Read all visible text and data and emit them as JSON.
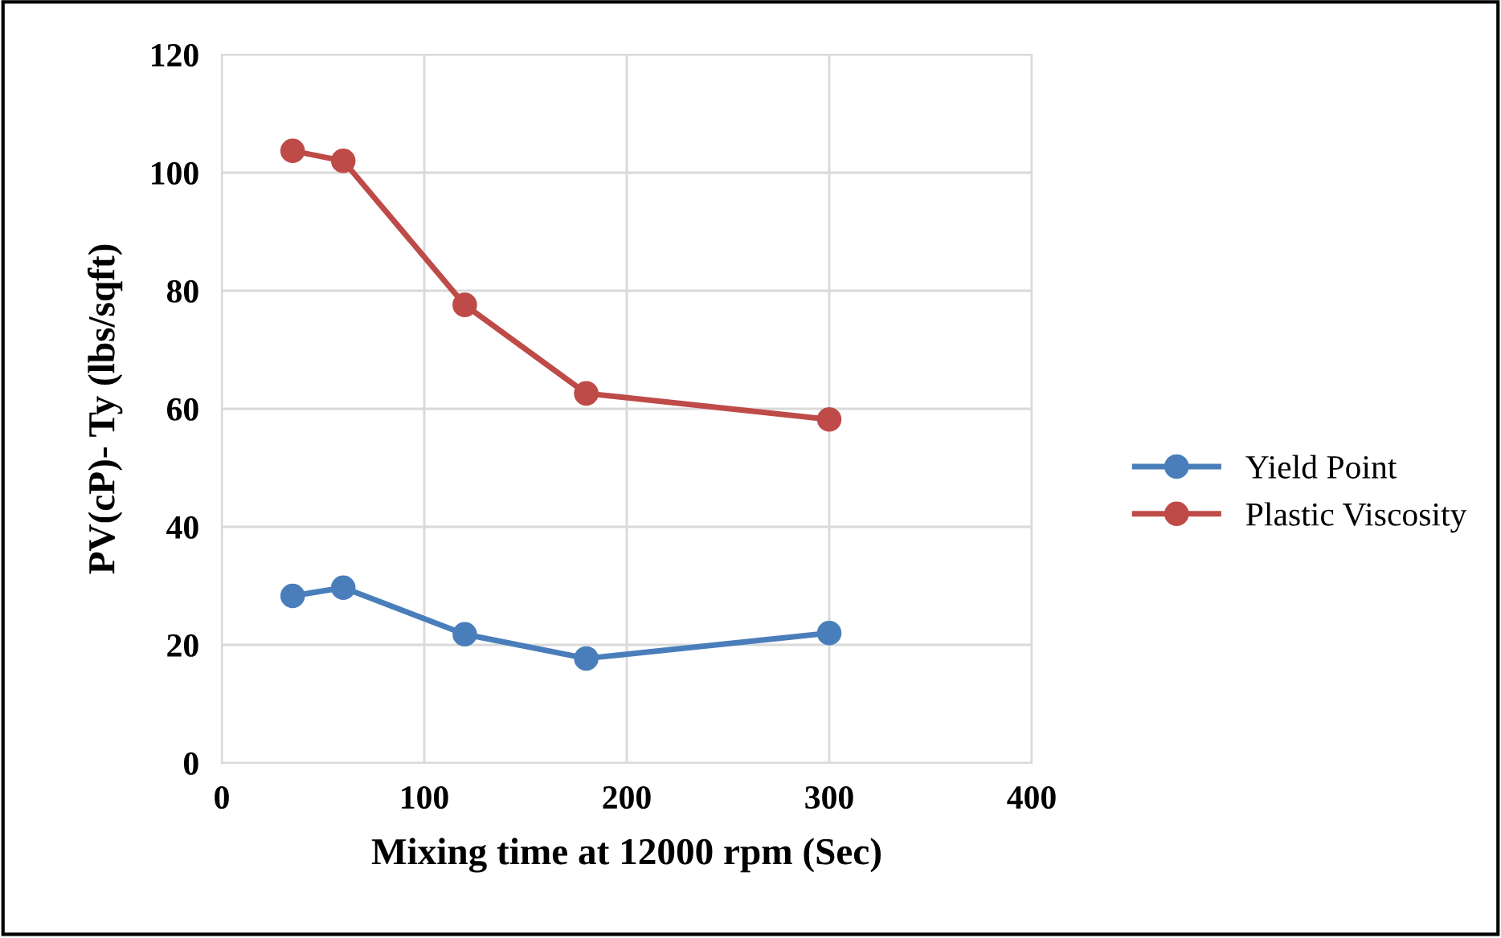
{
  "chart_data": {
    "type": "line",
    "xlabel": "Mixing time at 12000 rpm (Sec)",
    "ylabel": "PV(cP)- Ty (lbs/sqft)",
    "x": [
      35,
      60,
      120,
      180,
      300
    ],
    "series": [
      {
        "name": "Yield Point",
        "color": "#4a7ebb",
        "values": [
          28.3,
          29.7,
          21.8,
          17.7,
          22.0
        ]
      },
      {
        "name": "Plastic Viscosity",
        "color": "#be4b48",
        "values": [
          103.7,
          102.0,
          77.6,
          62.6,
          58.2
        ]
      }
    ],
    "xlim": [
      0,
      400
    ],
    "xticks": [
      0,
      100,
      200,
      300,
      400
    ],
    "ylim": [
      0,
      120
    ],
    "yticks": [
      0,
      20,
      40,
      60,
      80,
      100,
      120
    ],
    "grid": true,
    "legend": "right",
    "marker": "circle",
    "line_style": "solid"
  }
}
